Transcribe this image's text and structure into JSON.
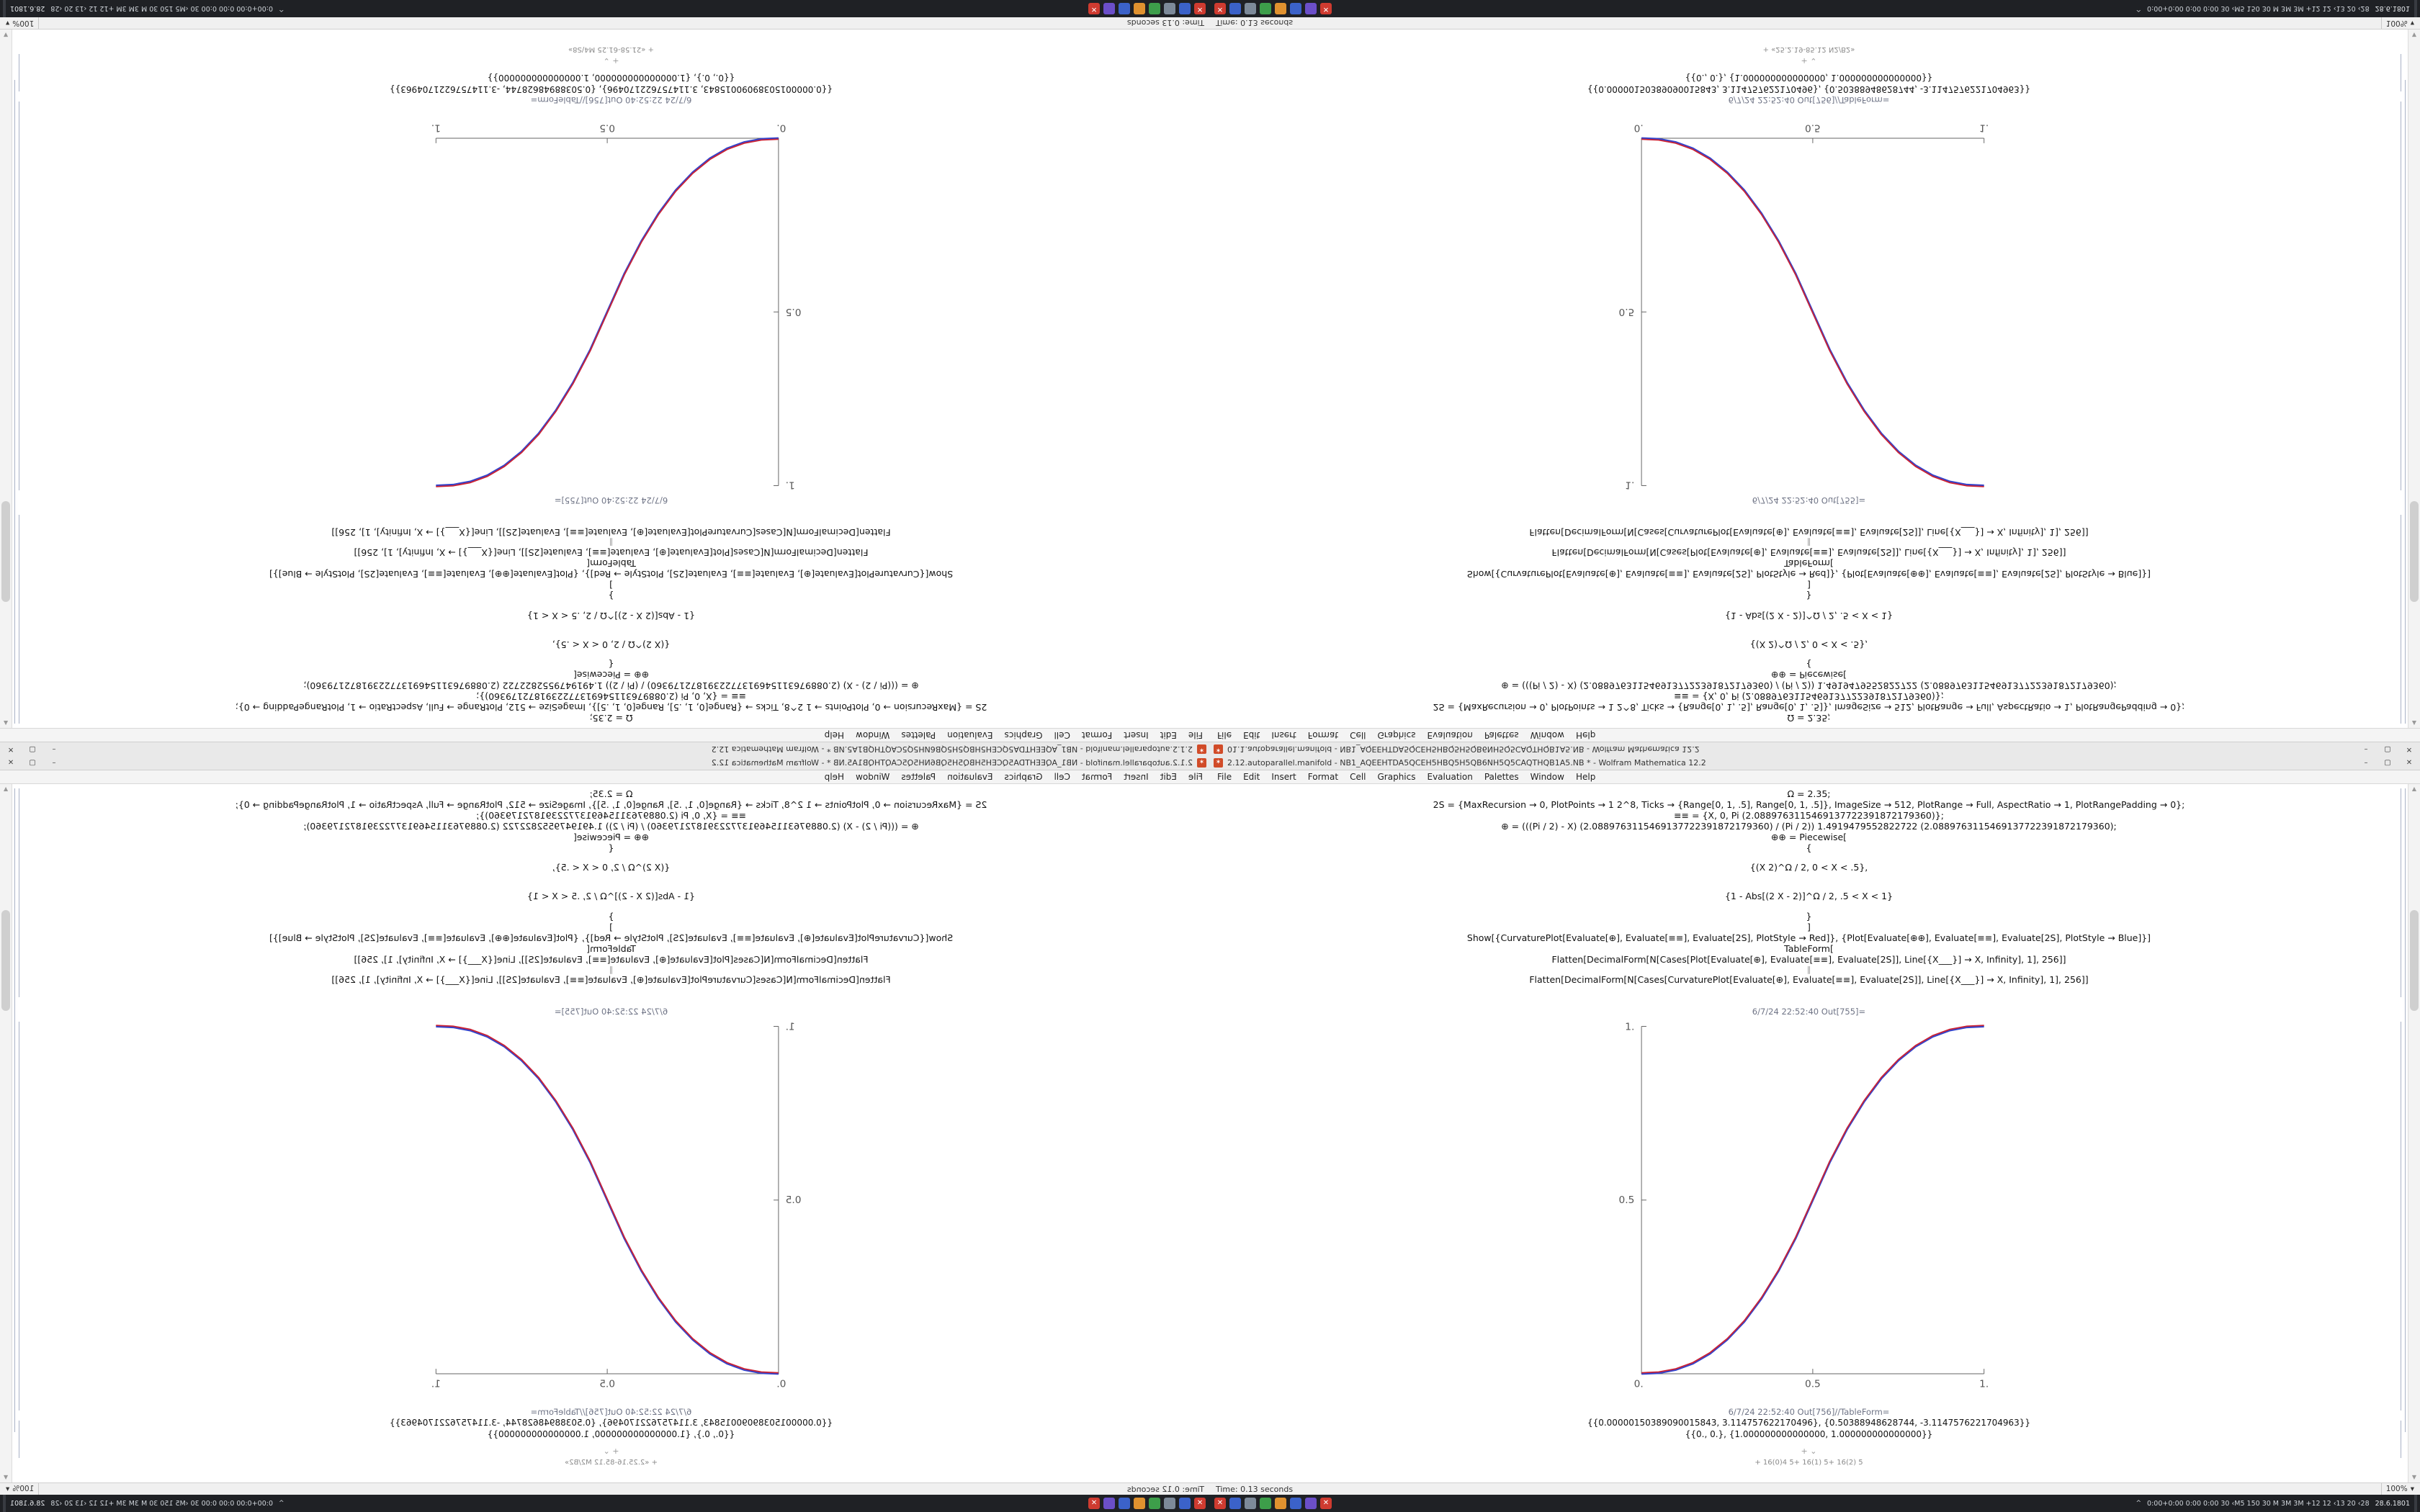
{
  "window": {
    "menu_items": [
      "File",
      "Edit",
      "Insert",
      "Format",
      "Cell",
      "Graphics",
      "Evaluation",
      "Palettes",
      "Window",
      "Help"
    ],
    "buttons": {
      "minimize": "–",
      "maximize": "▢",
      "close": "✕"
    },
    "app_icon_glyph": "✶",
    "scroll_up": "▲",
    "scroll_down": "▼",
    "zoom_caret": "▾"
  },
  "notebook": {
    "code_lines": [
      "Ω = 2.35;",
      "2S = {MaxRecursion → 0, PlotPoints → 1 2^8, Ticks → {Range[0, 1, .5], Range[0, 1, .5]}, ImageSize → 512, PlotRange → Full, AspectRatio → 1, PlotRangePadding → 0};",
      "≡≡ = {X, 0, Pi (2.0889763115469137722391872179360)};",
      "⊕ = (((Pi / 2) - X) (2.0889763115469137722391872179360) / (Pi / 2)) 1.4919479552822722 (2.0889763115469137722391872179360);",
      "⊕⊕ = Piecewise[",
      "{",
      "{(X 2)^Ω / 2,  0 < X < .5},",
      "{1 - Abs[(2 X - 2)]^Ω / 2,  .5 < X < 1}",
      "}",
      "]",
      "Show[{CurvaturePlot[Evaluate[⊕], Evaluate[≡≡], Evaluate[2S], PlotStyle → Red]}, {Plot[Evaluate[⊕⊕], Evaluate[≡≡], Evaluate[2S], PlotStyle → Blue]}]",
      "TableForm[",
      "Flatten[DecimalForm[N[Cases[Plot[Evaluate[⊕], Evaluate[≡≡], Evaluate[2S]], Line[{X___}] → X, Infinity], 1], 256]]",
      "‖",
      "Flatten[DecimalForm[N[Cases[CurvaturePlot[Evaluate[⊕], Evaluate[≡≡], Evaluate[2S]], Line[{X___}] → X, Infinity], 1], 256]]"
    ],
    "out_plot_label": "6/7/24 22:52:40  Out[755]=",
    "out_table_label": "6/7/24 22:52:40  Out[756]//TableForm=",
    "table_rows": [
      "{{0.00000150389090015843, 3.114757622170496}, {0.50388948628744, -3.1147576221704963}}",
      "{{0., 0.},  {1.000000000000000, 1.000000000000000}}"
    ],
    "insert_hint": "+ ⌄",
    "plot": {
      "type": "line",
      "description": "piecewise power sigmoid, Ω = 2.35, red CurvaturePlot over blue Plot",
      "x_range": [
        0,
        1
      ],
      "y_range": [
        0,
        1
      ],
      "x_ticks": [
        "0.",
        "0.5",
        "1."
      ],
      "y_ticks": [
        "0.",
        "0.5",
        "1."
      ],
      "series": [
        {
          "name": "CurvaturePlot",
          "color": "#cc2233"
        },
        {
          "name": "Plot",
          "color": "#3344cc"
        }
      ],
      "sample_points_x": [
        0,
        0.1,
        0.2,
        0.3,
        0.4,
        0.5,
        0.6,
        0.7,
        0.8,
        0.9,
        1
      ],
      "sample_points_y": [
        0,
        0.011,
        0.058,
        0.15,
        0.296,
        0.5,
        0.704,
        0.85,
        0.942,
        0.989,
        1
      ]
    }
  },
  "taskbar": {
    "icons": [
      {
        "name": "taskbar-icon-red-close-1",
        "color": "#cf3b30",
        "glyph": "✕"
      },
      {
        "name": "taskbar-icon-blue-1",
        "color": "#3b62c9",
        "glyph": ""
      },
      {
        "name": "taskbar-icon-grey",
        "color": "#7d8a99",
        "glyph": ""
      },
      {
        "name": "taskbar-icon-green",
        "color": "#3d9e4a",
        "glyph": ""
      },
      {
        "name": "taskbar-icon-orange",
        "color": "#e0922f",
        "glyph": ""
      },
      {
        "name": "taskbar-icon-blue-2",
        "color": "#3b62c9",
        "glyph": ""
      },
      {
        "name": "taskbar-icon-purple",
        "color": "#6b4fc9",
        "glyph": ""
      },
      {
        "name": "taskbar-icon-red-close-2",
        "color": "#cf3b30",
        "glyph": "✕"
      }
    ],
    "tray_chevron": "^",
    "tray_text": "0:00+0:00 0:00 0:00 30 ‹M5 150 30 M 3M 3M +12 12 ‹13 20 ‹28",
    "clock": "28.6.1801"
  },
  "panes": [
    {
      "id": "top-left",
      "transform": "rotate180",
      "title": "2.1.2.autoparallel.manifold - NB1_AQEEHTDA5QCEH5HBQ5H5QB6NH5Q5CAQTHQB1A5.NB * - Wolfram Mathematica 12.2",
      "time_status": "Time: 0.13 seconds",
      "zoom": "100%",
      "footer_note": "+ «21.58-61.25 M4/S8»"
    },
    {
      "id": "top-right",
      "transform": "flipv",
      "title": "01.1.autoparallel.manifold - NB1_AQEEHTDA5QCEH5HBQ5H5QB6NH5Q5CAQTHQB1A5.NB - Wolfram Mathematica 12.2",
      "time_status": "Time: 0.13 seconds",
      "zoom": "100%",
      "footer_note": "+ «25.2.19-85.12 N2/B2»"
    },
    {
      "id": "bottom-left",
      "transform": "fliph",
      "title": "2.1.2.autoparallel.manifold - NB1_AQEEHTDA5QCEH5HBQ5H5QB6NH5Q5CAQTHQB1A5.NB * - Wolfram Mathematica 12.2",
      "time_status": "Time: 0.12 seconds",
      "zoom": "100%",
      "footer_note": "+ «2.25.16-85.12 M2/B2»"
    },
    {
      "id": "bottom-right",
      "transform": "none",
      "title": "2.12.autoparallel.manifold - NB1_AQEEHTDA5QCEH5HBQ5H5QB6NH5Q5CAQTHQB1A5.NB * - Wolfram Mathematica 12.2",
      "time_status": "Time: 0.13 seconds",
      "zoom": "100%",
      "footer_note": "+ 16(0)4 5+ 16(1) 5+ 16(2) 5"
    }
  ]
}
